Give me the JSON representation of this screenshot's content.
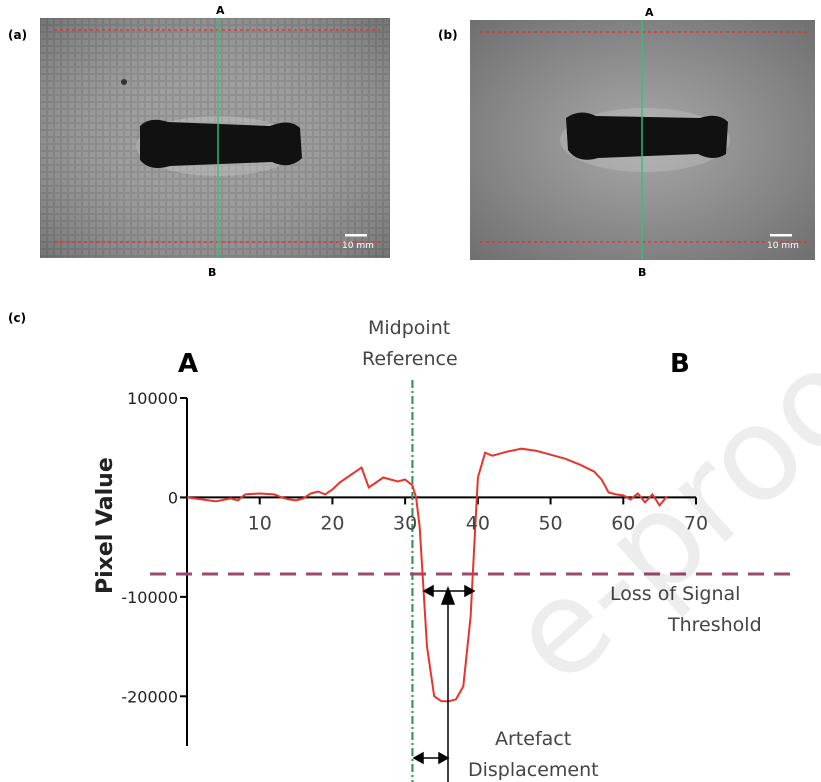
{
  "panels": {
    "a": {
      "label": "(a)",
      "top_marker": "A",
      "bottom_marker": "B",
      "scale_label": "10 mm"
    },
    "b": {
      "label": "(b)",
      "top_marker": "A",
      "bottom_marker": "B",
      "scale_label": "10 mm"
    },
    "c": {
      "label": "(c)"
    }
  },
  "colors": {
    "profile": "#e8342a",
    "threshold": "#9b4a6e",
    "midline": "#2e8b57",
    "roi": "#e03030",
    "axis": "#000000"
  },
  "watermark": "e-proof",
  "chart_data": {
    "type": "line",
    "title": "",
    "xlabel": "",
    "ylabel": "Pixel Value",
    "xlim": [
      0,
      70
    ],
    "ylim": [
      -25000,
      10000
    ],
    "x_ticks": [
      10,
      20,
      30,
      40,
      50,
      60,
      70
    ],
    "y_ticks": [
      10000,
      0,
      -10000,
      -20000
    ],
    "x_tick_labels": [
      "10",
      "20",
      "30",
      "40",
      "50",
      "60",
      "70"
    ],
    "y_tick_labels": [
      "10000",
      "0",
      "-10000",
      "-20000"
    ],
    "series": [
      {
        "name": "",
        "x": [
          0,
          2,
          4,
          6,
          7,
          8,
          10,
          12,
          13,
          14,
          15,
          16,
          17,
          18,
          19,
          20,
          21,
          22,
          23,
          24,
          25,
          26,
          27,
          28,
          29,
          30,
          31,
          31.5,
          32,
          33,
          34,
          35,
          36,
          37,
          38,
          39,
          39.5,
          40,
          41,
          42,
          44,
          46,
          48,
          50,
          52,
          54,
          56,
          57,
          58,
          59,
          60,
          61,
          62,
          63,
          64,
          65,
          66
        ],
        "y": [
          0,
          -200,
          -400,
          -100,
          -300,
          300,
          400,
          300,
          0,
          -200,
          -300,
          -100,
          400,
          600,
          300,
          800,
          1500,
          2000,
          2500,
          3000,
          1000,
          1500,
          2000,
          1800,
          1600,
          1800,
          1200,
          0,
          -3000,
          -15000,
          -20000,
          -20500,
          -20500,
          -20300,
          -19000,
          -12000,
          -5000,
          2000,
          4500,
          4200,
          4600,
          4900,
          4700,
          4300,
          3900,
          3300,
          2600,
          1800,
          500,
          300,
          200,
          -200,
          400,
          -500,
          300,
          -800,
          100
        ]
      }
    ],
    "reference_lines": {
      "midpoint_x": 31,
      "threshold_y": -7700
    },
    "annotations": {
      "panel_letter_left": "A",
      "panel_letter_right": "B",
      "midpoint_label_line1": "Midpoint",
      "midpoint_label_line2": "Reference",
      "threshold_label_line1": "Loss of Signal",
      "threshold_label_line2": "Threshold",
      "artefact_label_line1": "Artefact",
      "artefact_label_line2": "Displacement"
    },
    "grid": false,
    "legend": "none"
  }
}
